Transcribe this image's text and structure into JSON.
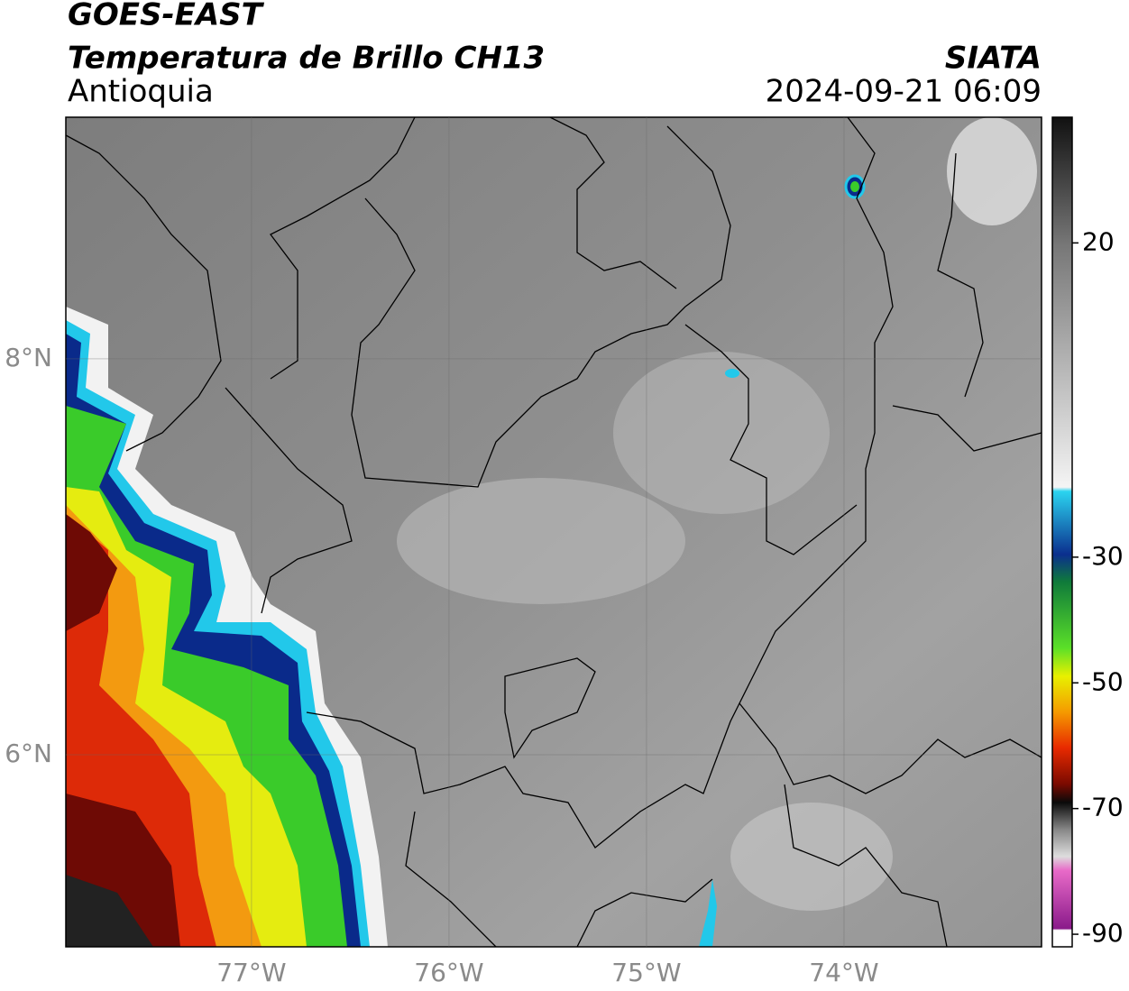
{
  "chart_data": {
    "type": "map",
    "title": "GOES-EAST",
    "subtitle": "Temperatura de Brillo CH13",
    "region": "Antioquia",
    "source": "SIATA",
    "datetime": "2024-09-21 06:09",
    "xlim": [
      -77.94,
      -73.0
    ],
    "ylim": [
      5.03,
      9.22
    ],
    "xticks": [
      {
        "value": -77,
        "label": "77°W"
      },
      {
        "value": -76,
        "label": "76°W"
      },
      {
        "value": -75,
        "label": "75°W"
      },
      {
        "value": -74,
        "label": "74°W"
      }
    ],
    "yticks": [
      {
        "value": 6,
        "label": "6°N"
      },
      {
        "value": 8,
        "label": "8°N"
      }
    ],
    "grid": true,
    "colorbar": {
      "lim": [
        -92,
        40
      ],
      "ticks": [
        20,
        -30,
        -50,
        -70,
        -90
      ]
    }
  }
}
